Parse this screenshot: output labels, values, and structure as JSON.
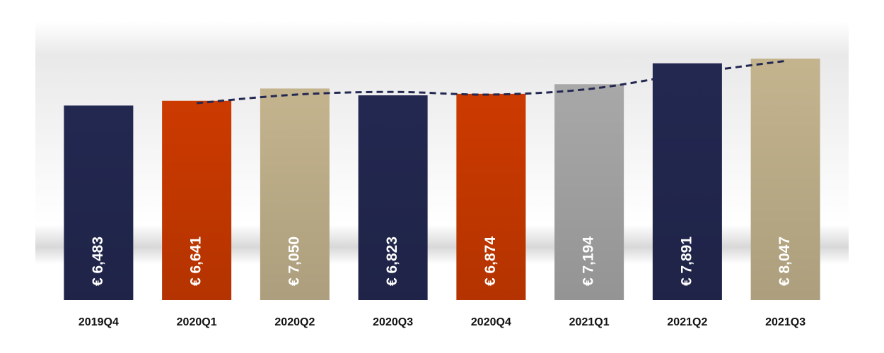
{
  "chart_data": {
    "type": "bar",
    "categories": [
      "2019Q4",
      "2020Q1",
      "2020Q2",
      "2020Q3",
      "2020Q4",
      "2021Q1",
      "2021Q2",
      "2021Q3"
    ],
    "values": [
      6483,
      6641,
      7050,
      6823,
      6874,
      7194,
      7891,
      8047
    ],
    "value_labels": [
      "€ 6,483",
      "€ 6,641",
      "€ 7,050",
      "€ 6,823",
      "€ 6,874",
      "€ 7,194",
      "€ 7,891",
      "€ 8,047"
    ],
    "colors": [
      "#232851",
      "#cc3a00",
      "#c4b48e",
      "#232851",
      "#cc3a00",
      "#a8a8a8",
      "#232851",
      "#c4b48e"
    ],
    "ylim": [
      0,
      10000
    ],
    "trendline": {
      "type": "moving_average",
      "color": "#232851",
      "dashed": true,
      "values": [
        null,
        6562,
        6845.5,
        6936.5,
        6848.5,
        7034,
        7542.5,
        7969
      ]
    }
  }
}
